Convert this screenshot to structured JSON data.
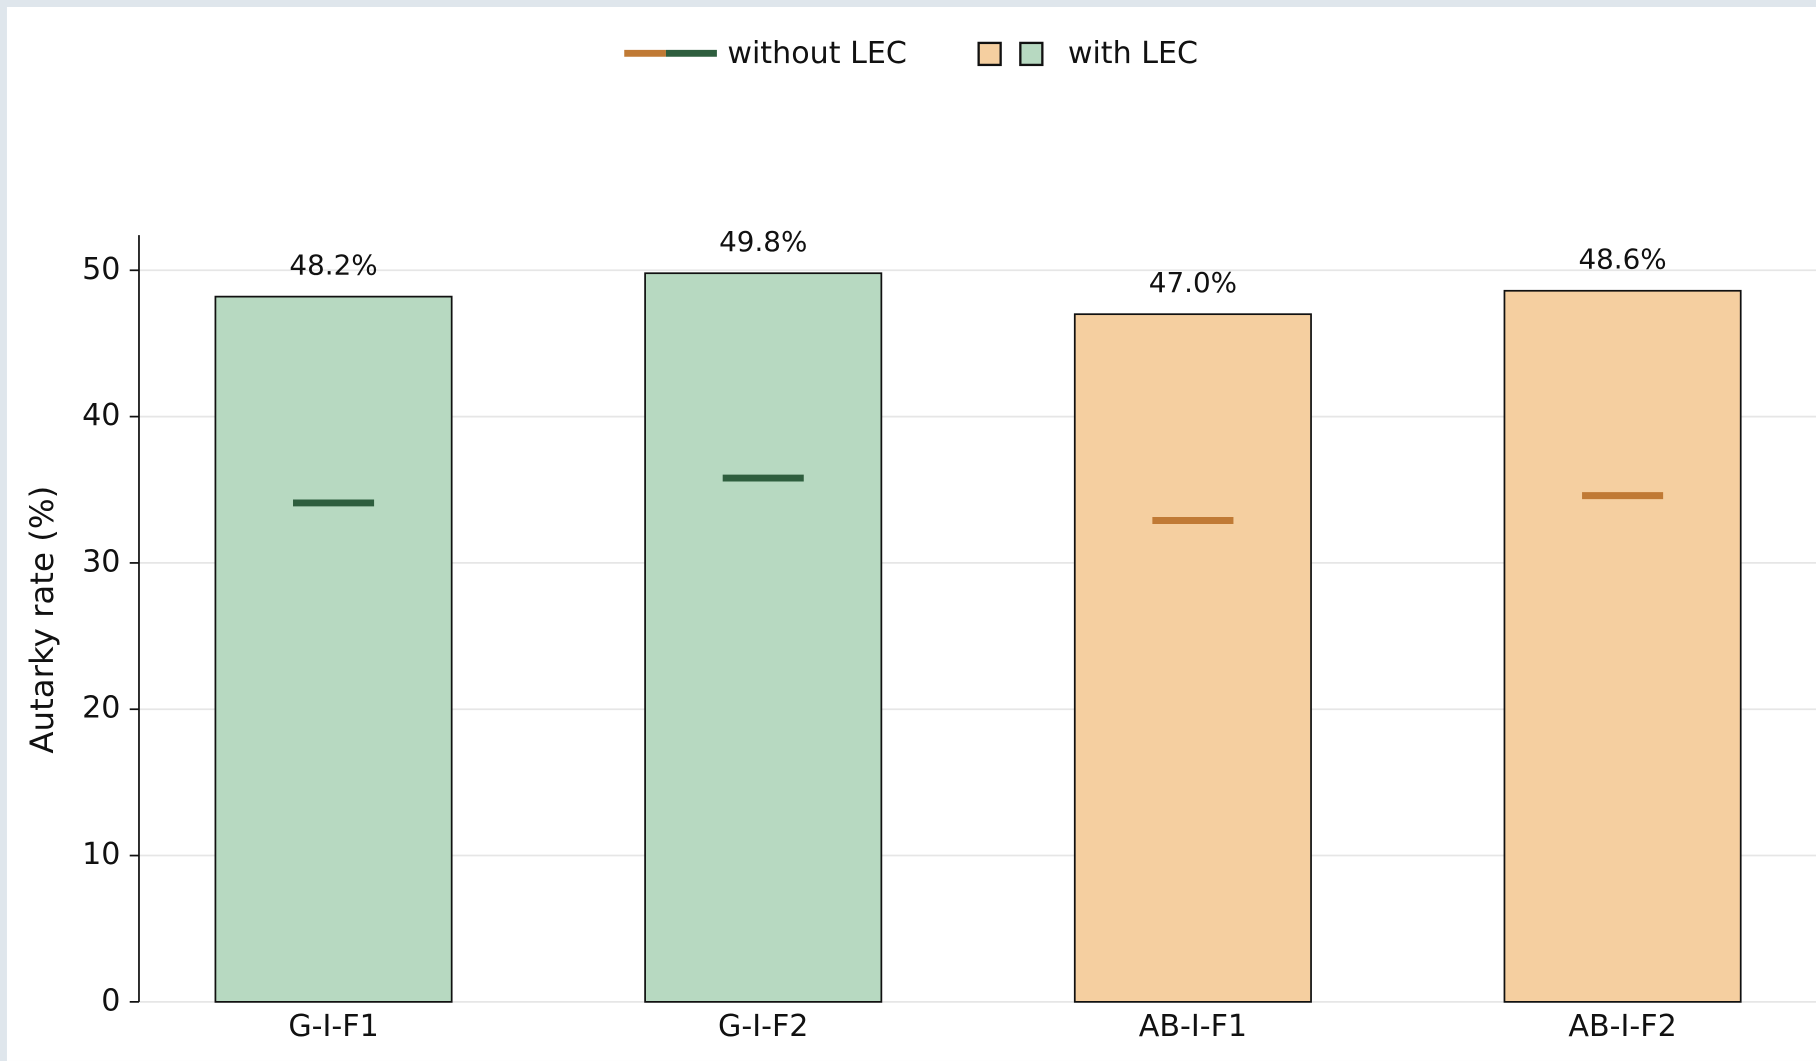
{
  "chart_data": {
    "type": "bar",
    "categories": [
      "G-I-F1",
      "G-I-F2",
      "AB-I-F1",
      "AB-I-F2"
    ],
    "series": [
      {
        "name": "without LEC",
        "colors": [
          "#2e5e3e",
          "#2e5e3e",
          "#c07a35",
          "#c07a35"
        ],
        "values": [
          34.1,
          35.8,
          32.9,
          34.6
        ]
      },
      {
        "name": "with LEC",
        "colors": [
          "#b7d9c1",
          "#b7d9c1",
          "#f5cfa0",
          "#f5cfa0"
        ],
        "values": [
          48.2,
          49.8,
          47.0,
          48.6
        ],
        "value_labels": [
          "48.2%",
          "49.8%",
          "47.0%",
          "48.6%"
        ]
      }
    ],
    "ylabel": "Autarky rate (%)",
    "ylim": [
      0,
      52.4
    ],
    "yticks": [
      0,
      10,
      20,
      30,
      40,
      50
    ],
    "grid": true
  }
}
